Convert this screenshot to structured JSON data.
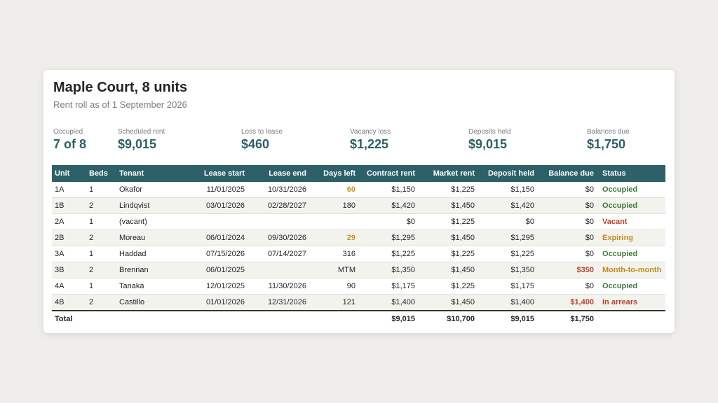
{
  "header": {
    "title": "Maple Court, 8 units",
    "subtitle": "Rent roll as of 1 September 2026"
  },
  "kpis": [
    {
      "label": "Occupied",
      "value": "7 of 8"
    },
    {
      "label": "Scheduled rent",
      "value": "$9,015"
    },
    {
      "label": "Loss to lease",
      "value": "$460"
    },
    {
      "label": "Vacancy loss",
      "value": "$1,225"
    },
    {
      "label": "Deposits held",
      "value": "$9,015"
    },
    {
      "label": "Balances due",
      "value": "$1,750"
    }
  ],
  "table": {
    "columns": [
      "Unit",
      "Beds",
      "Tenant",
      "Lease start",
      "Lease end",
      "Days left",
      "Contract rent",
      "Market rent",
      "Deposit held",
      "Balance due",
      "Status"
    ],
    "rows": [
      {
        "unit": "1A",
        "beds": "1",
        "tenant": "Okafor",
        "lease_start": "11/01/2025",
        "lease_end": "10/31/2026",
        "days_left": "60",
        "contract_rent": "$1,150",
        "market_rent": "$1,225",
        "deposit_held": "$1,150",
        "balance_due": "$0",
        "status": "Occupied"
      },
      {
        "unit": "1B",
        "beds": "2",
        "tenant": "Lindqvist",
        "lease_start": "03/01/2026",
        "lease_end": "02/28/2027",
        "days_left": "180",
        "contract_rent": "$1,420",
        "market_rent": "$1,450",
        "deposit_held": "$1,420",
        "balance_due": "$0",
        "status": "Occupied"
      },
      {
        "unit": "2A",
        "beds": "1",
        "tenant": "(vacant)",
        "lease_start": "",
        "lease_end": "",
        "days_left": "",
        "contract_rent": "$0",
        "market_rent": "$1,225",
        "deposit_held": "$0",
        "balance_due": "$0",
        "status": "Vacant"
      },
      {
        "unit": "2B",
        "beds": "2",
        "tenant": "Moreau",
        "lease_start": "06/01/2024",
        "lease_end": "09/30/2026",
        "days_left": "29",
        "contract_rent": "$1,295",
        "market_rent": "$1,450",
        "deposit_held": "$1,295",
        "balance_due": "$0",
        "status": "Expiring"
      },
      {
        "unit": "3A",
        "beds": "1",
        "tenant": "Haddad",
        "lease_start": "07/15/2026",
        "lease_end": "07/14/2027",
        "days_left": "316",
        "contract_rent": "$1,225",
        "market_rent": "$1,225",
        "deposit_held": "$1,225",
        "balance_due": "$0",
        "status": "Occupied"
      },
      {
        "unit": "3B",
        "beds": "2",
        "tenant": "Brennan",
        "lease_start": "06/01/2025",
        "lease_end": "",
        "days_left": "MTM",
        "contract_rent": "$1,350",
        "market_rent": "$1,450",
        "deposit_held": "$1,350",
        "balance_due": "$350",
        "status": "Month-to-month"
      },
      {
        "unit": "4A",
        "beds": "1",
        "tenant": "Tanaka",
        "lease_start": "12/01/2025",
        "lease_end": "11/30/2026",
        "days_left": "90",
        "contract_rent": "$1,175",
        "market_rent": "$1,225",
        "deposit_held": "$1,175",
        "balance_due": "$0",
        "status": "Occupied"
      },
      {
        "unit": "4B",
        "beds": "2",
        "tenant": "Castillo",
        "lease_start": "01/01/2026",
        "lease_end": "12/31/2026",
        "days_left": "121",
        "contract_rent": "$1,400",
        "market_rent": "$1,450",
        "deposit_held": "$1,400",
        "balance_due": "$1,400",
        "status": "In arrears"
      }
    ],
    "total": {
      "label": "Total",
      "contract_rent": "$9,015",
      "market_rent": "$10,700",
      "deposit_held": "$9,015",
      "balance_due": "$1,750"
    }
  },
  "colors": {
    "accent": "#2d6068",
    "occupied": "#3d7a3a",
    "warning": "#c48a1e",
    "alert": "#b8432e",
    "days_warning": "#c9951f"
  }
}
